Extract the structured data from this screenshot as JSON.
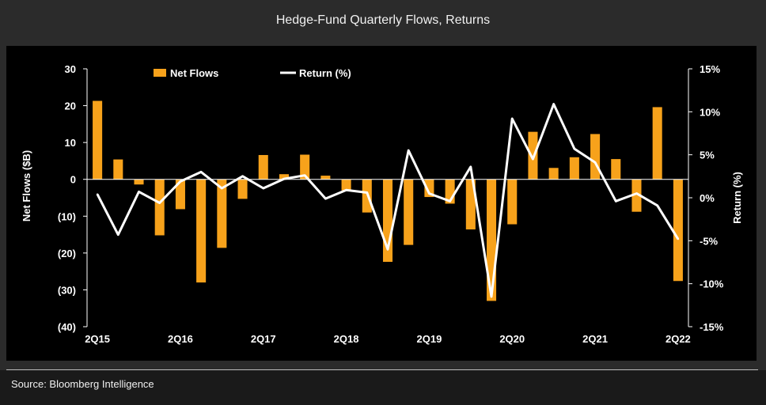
{
  "chart_data": {
    "type": "bar",
    "title": "Hedge-Fund Quarterly Flows, Returns",
    "source": "Source: Bloomberg Intelligence",
    "categories": [
      "2Q15",
      "3Q15",
      "4Q15",
      "1Q16",
      "2Q16",
      "3Q16",
      "4Q16",
      "1Q17",
      "2Q17",
      "3Q17",
      "4Q17",
      "1Q18",
      "2Q18",
      "3Q18",
      "4Q18",
      "1Q19",
      "2Q19",
      "3Q19",
      "4Q19",
      "1Q20",
      "2Q20",
      "3Q20",
      "4Q20",
      "1Q21",
      "2Q21",
      "3Q21",
      "4Q21",
      "1Q22",
      "2Q22"
    ],
    "x_tick_labels": [
      "2Q15",
      "2Q16",
      "2Q17",
      "2Q18",
      "2Q19",
      "2Q20",
      "2Q21",
      "2Q22"
    ],
    "series": [
      {
        "name": "Net Flows",
        "type": "bar",
        "axis": "left",
        "color": "#f7a21b",
        "values": [
          21.3,
          5.4,
          -1.4,
          -15.2,
          -8.1,
          -28,
          -18.6,
          -5.3,
          6.6,
          1.4,
          6.7,
          1.0,
          -3.0,
          -9.0,
          -22.4,
          -17.8,
          -4.8,
          -6.6,
          -13.6,
          -33,
          -12.2,
          12.9,
          3.1,
          6.0,
          12.3,
          5.5,
          -8.8,
          19.6,
          -27.6
        ]
      },
      {
        "name": "Return (%)",
        "type": "line",
        "axis": "right",
        "color": "#ffffff",
        "values": [
          0.4,
          -4.3,
          0.7,
          -0.6,
          1.9,
          3.0,
          1.1,
          2.5,
          1.1,
          2.2,
          2.6,
          -0.1,
          0.9,
          0.6,
          -6.0,
          5.5,
          0.5,
          -0.4,
          3.6,
          -11.5,
          9.2,
          4.5,
          10.9,
          5.7,
          4.1,
          -0.4,
          0.5,
          -0.9,
          -4.8
        ]
      }
    ],
    "ylabel_left": "Net Flows ($B)",
    "ylim_left": [
      -40,
      30
    ],
    "yticks_left": [
      "30",
      "20",
      "10",
      "0",
      "(10)",
      "(20)",
      "(30)",
      "(40)"
    ],
    "ylabel_right": "Return (%)",
    "ylim_right": [
      -15,
      15
    ],
    "yticks_right": [
      "15%",
      "10%",
      "5%",
      "0%",
      "-5%",
      "-10%",
      "-15%"
    ],
    "legend": {
      "placement": "top-left",
      "entries": [
        "Net Flows",
        "Return (%)"
      ]
    },
    "grid": false
  }
}
